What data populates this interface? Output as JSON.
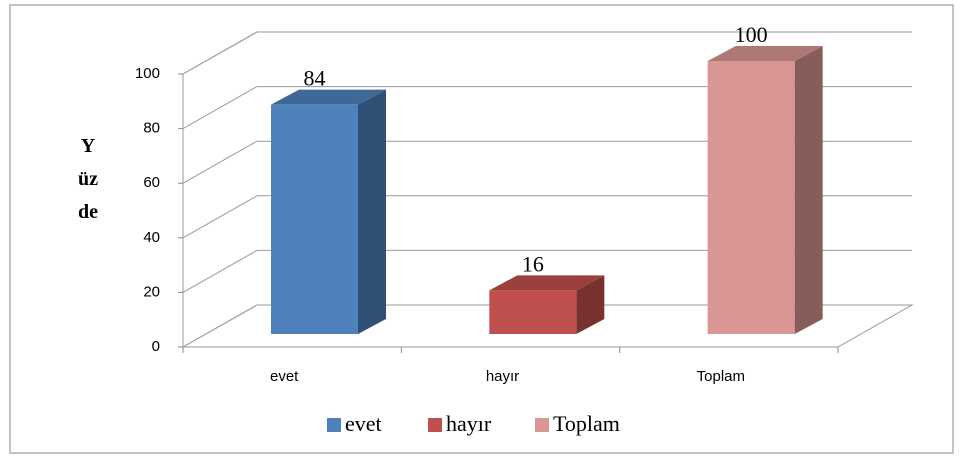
{
  "chart_data": {
    "type": "bar3d",
    "y_label": "Yüzde",
    "categories": [
      "evet",
      "hayır",
      "Toplam"
    ],
    "values": [
      84,
      16,
      100
    ],
    "colors": [
      "#4f81bd",
      "#c0504d",
      "#d99694"
    ],
    "ylim": [
      0,
      100
    ],
    "yticks": [
      0,
      20,
      40,
      60,
      80,
      100
    ],
    "grid": true,
    "legend": "bottom"
  }
}
